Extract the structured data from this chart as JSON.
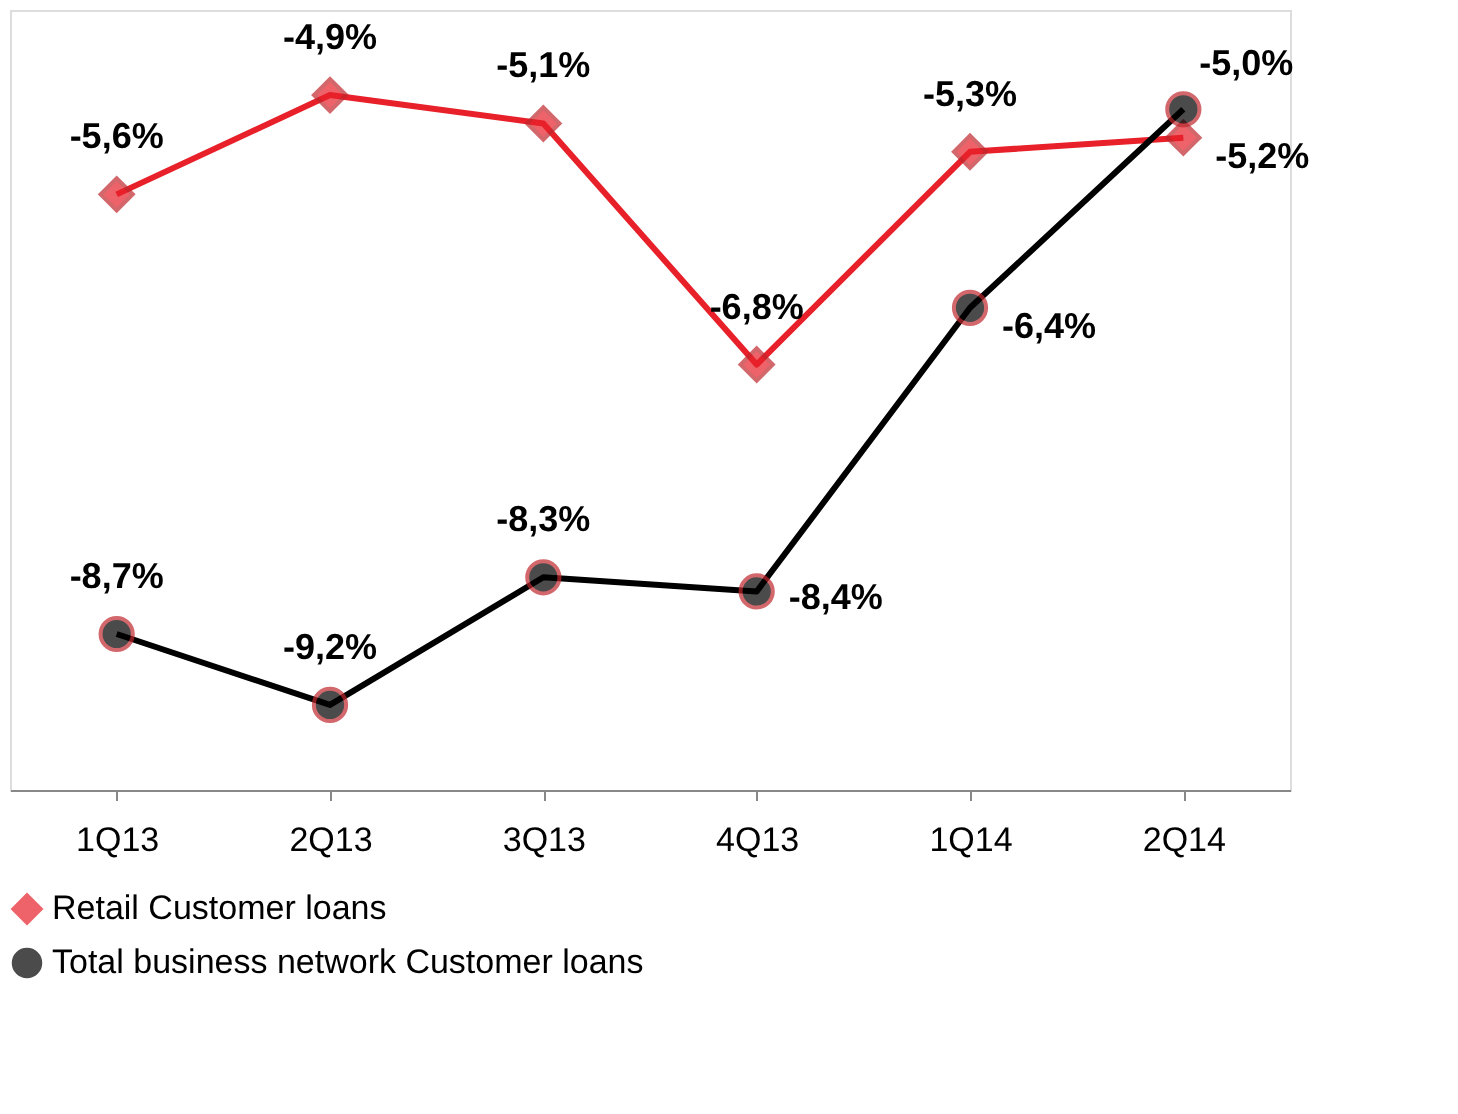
{
  "chart_data": {
    "type": "line",
    "categories": [
      "1Q13",
      "2Q13",
      "3Q13",
      "4Q13",
      "1Q14",
      "2Q14"
    ],
    "series": [
      {
        "name": "Retail Customer loans",
        "color": "#e8202a",
        "marker": "diamond",
        "values": [
          -5.6,
          -4.9,
          -5.1,
          -6.8,
          -5.3,
          -5.2
        ],
        "value_labels": [
          "-5,6%",
          "-4,9%",
          "-5,1%",
          "-6,8%",
          "-5,3%",
          "-5,2%"
        ]
      },
      {
        "name": "Total business network Customer loans",
        "color": "#000000",
        "marker": "circle",
        "values": [
          -8.7,
          -9.2,
          -8.3,
          -8.4,
          -6.4,
          -5.0
        ],
        "value_labels": [
          "-8,7%",
          "-9,2%",
          "-8,3%",
          "-8,4%",
          "-6,4%",
          "-5,0%"
        ]
      }
    ],
    "legend": "bottom",
    "grid": false
  }
}
